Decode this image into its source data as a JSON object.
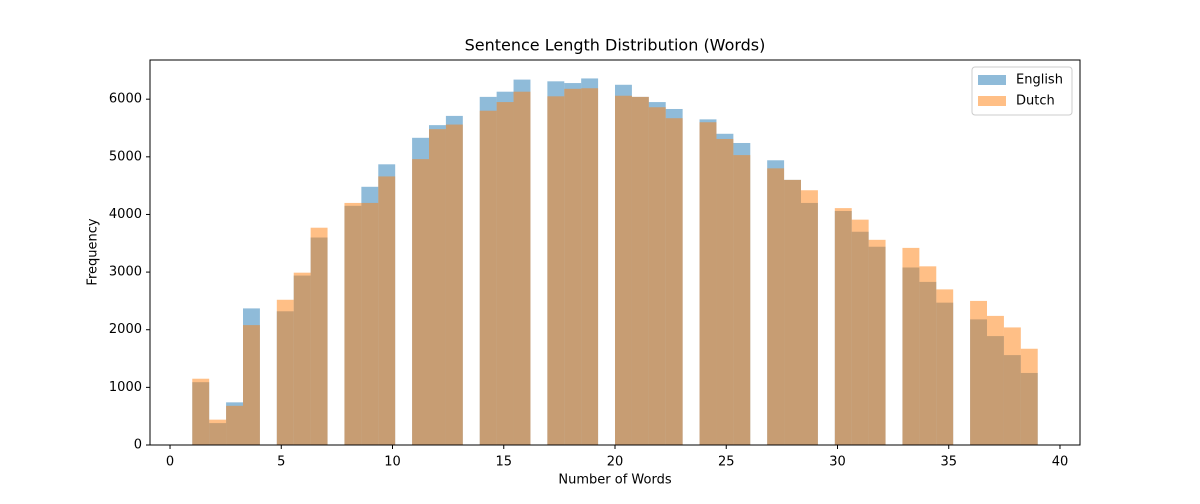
{
  "chart_data": {
    "type": "histogram",
    "title": "Sentence Length Distribution (Words)",
    "xlabel": "Number of Words",
    "ylabel": "Frequency",
    "bins": [
      1,
      1.76,
      2.52,
      3.28,
      4.04,
      4.8,
      5.56,
      6.32,
      7.08,
      7.84,
      8.6,
      9.36,
      10.12,
      10.88,
      11.64,
      12.4,
      13.16,
      13.92,
      14.68,
      15.44,
      16.2,
      16.96,
      17.72,
      18.48,
      19.24,
      20,
      20.76,
      21.52,
      22.28,
      23.04,
      23.8,
      24.56,
      25.32,
      26.08,
      26.84,
      27.6,
      28.36,
      29.12,
      29.88,
      30.64,
      31.4,
      32.16,
      32.92,
      33.68,
      34.44,
      35.2,
      35.96,
      36.72,
      37.48,
      38.24,
      39
    ],
    "series": [
      {
        "name": "English",
        "color": "#1f77b4",
        "opacity": 0.5,
        "values": [
          1090,
          380,
          740,
          2370,
          0,
          2320,
          2940,
          3600,
          0,
          4150,
          4480,
          4870,
          0,
          5330,
          5550,
          5710,
          0,
          6040,
          6130,
          6340,
          0,
          6310,
          6280,
          6360,
          0,
          6250,
          6040,
          5950,
          5830,
          0,
          5650,
          5400,
          5240,
          0,
          4940,
          4600,
          4200,
          0,
          4060,
          3700,
          3440,
          0,
          3080,
          2830,
          2470,
          0,
          2180,
          1890,
          1560,
          1250
        ]
      },
      {
        "name": "Dutch",
        "color": "#ff7f0e",
        "opacity": 0.5,
        "values": [
          1150,
          440,
          680,
          2080,
          0,
          2520,
          2990,
          3770,
          0,
          4200,
          4200,
          4660,
          0,
          4960,
          5480,
          5560,
          0,
          5800,
          5950,
          6130,
          0,
          6050,
          6180,
          6190,
          0,
          6060,
          6040,
          5860,
          5670,
          0,
          5600,
          5310,
          5030,
          0,
          4800,
          4600,
          4420,
          0,
          4110,
          3910,
          3560,
          0,
          3420,
          3100,
          2700,
          0,
          2500,
          2240,
          2040,
          1670
        ]
      }
    ],
    "xlim": [
      -0.9,
      40.9
    ],
    "xticks": [
      0,
      5,
      10,
      15,
      20,
      25,
      30,
      35,
      40
    ],
    "ylim": [
      0,
      6680
    ],
    "yticks": [
      0,
      1000,
      2000,
      3000,
      4000,
      5000,
      6000
    ],
    "legend": "upper right"
  }
}
